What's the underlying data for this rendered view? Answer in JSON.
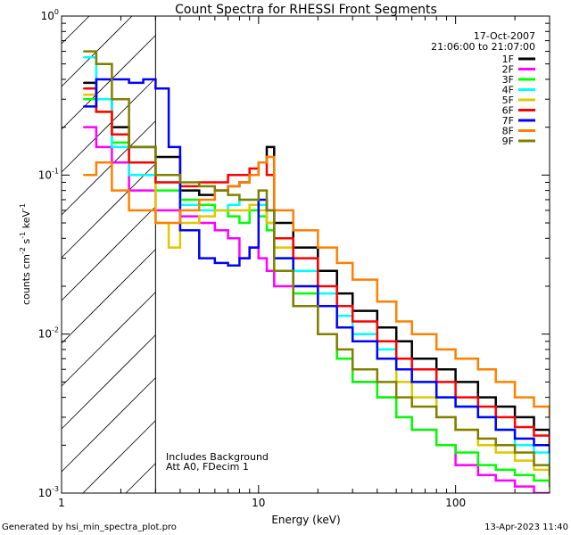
{
  "chart_data": {
    "type": "line",
    "title": "Count Spectra for RHESSI Front Segments",
    "xlabel": "Energy (keV)",
    "ylabel": "counts cm",
    "ylabel_sup1": "-2",
    "ylabel_mid": " s",
    "ylabel_sup2": "-1",
    "ylabel_tail": " keV",
    "ylabel_sup3": "-1",
    "xscale": "log",
    "yscale": "log",
    "xlim": [
      1,
      300
    ],
    "ylim": [
      0.001,
      1
    ],
    "x_tick_labels": [
      {
        "value": 1,
        "label": "1"
      },
      {
        "value": 10,
        "label": "10"
      },
      {
        "value": 100,
        "label": "100"
      }
    ],
    "y_tick_labels": [
      {
        "value": 1,
        "base": "10",
        "exp": "0"
      },
      {
        "value": 0.1,
        "base": "10",
        "exp": "-1"
      },
      {
        "value": 0.01,
        "base": "10",
        "exp": "-2"
      },
      {
        "value": 0.001,
        "base": "10",
        "exp": "-3"
      }
    ],
    "date_text": "17-Oct-2007",
    "time_text": "21:06:00 to 21:07:00",
    "annotations": [
      "Includes Background",
      "Att A0, FDecim 1"
    ],
    "hatched_region_keV": [
      1,
      3
    ],
    "series": [
      {
        "name": "1F",
        "color": "#000000",
        "points": [
          [
            1.3,
            0.38
          ],
          [
            1.5,
            0.3
          ],
          [
            1.8,
            0.2
          ],
          [
            2.2,
            0.15
          ],
          [
            3,
            0.13
          ],
          [
            4,
            0.08
          ],
          [
            5,
            0.075
          ],
          [
            6,
            0.08
          ],
          [
            7,
            0.085
          ],
          [
            8,
            0.09
          ],
          [
            9,
            0.1
          ],
          [
            10,
            0.12
          ],
          [
            11,
            0.15
          ],
          [
            12,
            0.05
          ],
          [
            15,
            0.035
          ],
          [
            20,
            0.025
          ],
          [
            25,
            0.018
          ],
          [
            30,
            0.014
          ],
          [
            40,
            0.011
          ],
          [
            50,
            0.009
          ],
          [
            60,
            0.007
          ],
          [
            80,
            0.006
          ],
          [
            100,
            0.005
          ],
          [
            130,
            0.004
          ],
          [
            160,
            0.0035
          ],
          [
            200,
            0.003
          ],
          [
            250,
            0.0025
          ],
          [
            300,
            0.002
          ]
        ]
      },
      {
        "name": "2F",
        "color": "#ff00ff",
        "points": [
          [
            1.3,
            0.2
          ],
          [
            1.5,
            0.15
          ],
          [
            1.8,
            0.12
          ],
          [
            2.2,
            0.08
          ],
          [
            3,
            0.06
          ],
          [
            4,
            0.055
          ],
          [
            5,
            0.05
          ],
          [
            6,
            0.045
          ],
          [
            7,
            0.04
          ],
          [
            8,
            0.03
          ],
          [
            9,
            0.035
          ],
          [
            10,
            0.03
          ],
          [
            11,
            0.025
          ],
          [
            12,
            0.02
          ],
          [
            15,
            0.015
          ],
          [
            20,
            0.01
          ],
          [
            25,
            0.007
          ],
          [
            30,
            0.005
          ],
          [
            40,
            0.004
          ],
          [
            50,
            0.003
          ],
          [
            60,
            0.0025
          ],
          [
            80,
            0.002
          ],
          [
            100,
            0.0015
          ],
          [
            130,
            0.0013
          ],
          [
            160,
            0.0012
          ],
          [
            200,
            0.0011
          ],
          [
            250,
            0.001
          ],
          [
            300,
            0.001
          ]
        ]
      },
      {
        "name": "3F",
        "color": "#00ff00",
        "points": [
          [
            1.3,
            0.3
          ],
          [
            1.5,
            0.25
          ],
          [
            1.8,
            0.16
          ],
          [
            2.2,
            0.12
          ],
          [
            3,
            0.08
          ],
          [
            4,
            0.07
          ],
          [
            5,
            0.065
          ],
          [
            6,
            0.06
          ],
          [
            7,
            0.055
          ],
          [
            8,
            0.05
          ],
          [
            9,
            0.06
          ],
          [
            10,
            0.055
          ],
          [
            11,
            0.045
          ],
          [
            12,
            0.03
          ],
          [
            15,
            0.018
          ],
          [
            20,
            0.01
          ],
          [
            25,
            0.007
          ],
          [
            30,
            0.005
          ],
          [
            40,
            0.004
          ],
          [
            50,
            0.003
          ],
          [
            60,
            0.0025
          ],
          [
            80,
            0.002
          ],
          [
            100,
            0.0018
          ],
          [
            130,
            0.0015
          ],
          [
            160,
            0.0014
          ],
          [
            200,
            0.0013
          ],
          [
            250,
            0.0012
          ],
          [
            300,
            0.0011
          ]
        ]
      },
      {
        "name": "4F",
        "color": "#00ffff",
        "points": [
          [
            1.3,
            0.55
          ],
          [
            1.5,
            0.3
          ],
          [
            1.8,
            0.15
          ],
          [
            2.2,
            0.1
          ],
          [
            3,
            0.09
          ],
          [
            4,
            0.065
          ],
          [
            5,
            0.06
          ],
          [
            6,
            0.06
          ],
          [
            7,
            0.065
          ],
          [
            8,
            0.07
          ],
          [
            9,
            0.07
          ],
          [
            10,
            0.065
          ],
          [
            11,
            0.05
          ],
          [
            12,
            0.04
          ],
          [
            15,
            0.025
          ],
          [
            20,
            0.018
          ],
          [
            25,
            0.013
          ],
          [
            30,
            0.01
          ],
          [
            40,
            0.008
          ],
          [
            50,
            0.006
          ],
          [
            60,
            0.005
          ],
          [
            80,
            0.004
          ],
          [
            100,
            0.0035
          ],
          [
            130,
            0.003
          ],
          [
            160,
            0.0025
          ],
          [
            200,
            0.002
          ],
          [
            250,
            0.0018
          ],
          [
            300,
            0.0015
          ]
        ]
      },
      {
        "name": "5F",
        "color": "#e0c800",
        "points": [
          [
            1.3,
            0.32
          ],
          [
            1.5,
            0.25
          ],
          [
            1.8,
            0.18
          ],
          [
            2.2,
            0.12
          ],
          [
            3,
            0.05
          ],
          [
            3.5,
            0.035
          ],
          [
            4,
            0.05
          ],
          [
            5,
            0.055
          ],
          [
            6,
            0.06
          ],
          [
            7,
            0.06
          ],
          [
            8,
            0.06
          ],
          [
            9,
            0.065
          ],
          [
            10,
            0.06
          ],
          [
            11,
            0.05
          ],
          [
            12,
            0.035
          ],
          [
            15,
            0.02
          ],
          [
            20,
            0.015
          ],
          [
            25,
            0.011
          ],
          [
            30,
            0.009
          ],
          [
            40,
            0.007
          ],
          [
            50,
            0.005
          ],
          [
            60,
            0.004
          ],
          [
            80,
            0.003
          ],
          [
            100,
            0.0025
          ],
          [
            130,
            0.002
          ],
          [
            160,
            0.0018
          ],
          [
            200,
            0.0016
          ],
          [
            250,
            0.0014
          ],
          [
            300,
            0.0012
          ]
        ]
      },
      {
        "name": "6F",
        "color": "#ff0000",
        "points": [
          [
            1.3,
            0.35
          ],
          [
            1.5,
            0.25
          ],
          [
            1.8,
            0.18
          ],
          [
            2.2,
            0.12
          ],
          [
            3,
            0.09
          ],
          [
            4,
            0.085
          ],
          [
            5,
            0.09
          ],
          [
            6,
            0.09
          ],
          [
            7,
            0.1
          ],
          [
            8,
            0.1
          ],
          [
            9,
            0.11
          ],
          [
            10,
            0.12
          ],
          [
            11,
            0.1
          ],
          [
            12,
            0.04
          ],
          [
            15,
            0.03
          ],
          [
            20,
            0.02
          ],
          [
            25,
            0.015
          ],
          [
            30,
            0.012
          ],
          [
            40,
            0.009
          ],
          [
            50,
            0.007
          ],
          [
            60,
            0.006
          ],
          [
            80,
            0.005
          ],
          [
            100,
            0.004
          ],
          [
            130,
            0.0035
          ],
          [
            160,
            0.003
          ],
          [
            200,
            0.0026
          ],
          [
            250,
            0.0023
          ],
          [
            300,
            0.002
          ]
        ]
      },
      {
        "name": "7F",
        "color": "#0000ff",
        "points": [
          [
            1.3,
            0.27
          ],
          [
            1.5,
            0.4
          ],
          [
            1.8,
            0.4
          ],
          [
            2.2,
            0.38
          ],
          [
            2.6,
            0.4
          ],
          [
            3,
            0.35
          ],
          [
            3.5,
            0.15
          ],
          [
            4,
            0.045
          ],
          [
            5,
            0.03
          ],
          [
            6,
            0.028
          ],
          [
            7,
            0.027
          ],
          [
            8,
            0.03
          ],
          [
            9,
            0.035
          ],
          [
            10,
            0.07
          ],
          [
            11,
            0.06
          ],
          [
            12,
            0.03
          ],
          [
            15,
            0.02
          ],
          [
            20,
            0.015
          ],
          [
            25,
            0.011
          ],
          [
            30,
            0.009
          ],
          [
            40,
            0.007
          ],
          [
            50,
            0.006
          ],
          [
            60,
            0.005
          ],
          [
            80,
            0.004
          ],
          [
            100,
            0.0035
          ],
          [
            130,
            0.003
          ],
          [
            160,
            0.0025
          ],
          [
            200,
            0.0022
          ],
          [
            250,
            0.002
          ],
          [
            300,
            0.0018
          ]
        ]
      },
      {
        "name": "8F",
        "color": "#ff8000",
        "points": [
          [
            1.3,
            0.1
          ],
          [
            1.5,
            0.12
          ],
          [
            1.8,
            0.08
          ],
          [
            2.2,
            0.06
          ],
          [
            3,
            0.05
          ],
          [
            4,
            0.06
          ],
          [
            5,
            0.07
          ],
          [
            6,
            0.08
          ],
          [
            7,
            0.085
          ],
          [
            8,
            0.09
          ],
          [
            9,
            0.1
          ],
          [
            10,
            0.12
          ],
          [
            11,
            0.13
          ],
          [
            12,
            0.06
          ],
          [
            15,
            0.045
          ],
          [
            20,
            0.035
          ],
          [
            25,
            0.028
          ],
          [
            30,
            0.022
          ],
          [
            40,
            0.016
          ],
          [
            50,
            0.012
          ],
          [
            60,
            0.01
          ],
          [
            80,
            0.008
          ],
          [
            100,
            0.007
          ],
          [
            130,
            0.006
          ],
          [
            160,
            0.005
          ],
          [
            200,
            0.004
          ],
          [
            250,
            0.0035
          ],
          [
            300,
            0.003
          ]
        ]
      },
      {
        "name": "9F",
        "color": "#808000",
        "points": [
          [
            1.3,
            0.6
          ],
          [
            1.5,
            0.5
          ],
          [
            1.8,
            0.3
          ],
          [
            2.2,
            0.15
          ],
          [
            3,
            0.1
          ],
          [
            4,
            0.09
          ],
          [
            5,
            0.085
          ],
          [
            6,
            0.08
          ],
          [
            7,
            0.075
          ],
          [
            8,
            0.07
          ],
          [
            9,
            0.07
          ],
          [
            10,
            0.08
          ],
          [
            11,
            0.06
          ],
          [
            12,
            0.025
          ],
          [
            15,
            0.015
          ],
          [
            20,
            0.01
          ],
          [
            25,
            0.008
          ],
          [
            30,
            0.006
          ],
          [
            40,
            0.005
          ],
          [
            50,
            0.004
          ],
          [
            60,
            0.0035
          ],
          [
            80,
            0.003
          ],
          [
            100,
            0.0025
          ],
          [
            130,
            0.0022
          ],
          [
            160,
            0.002
          ],
          [
            200,
            0.0018
          ],
          [
            250,
            0.0015
          ],
          [
            300,
            0.0013
          ]
        ]
      }
    ]
  },
  "footer": {
    "generated_by": "Generated by hsi_min_spectra_plot.pro",
    "timestamp": "13-Apr-2023 11:40"
  }
}
